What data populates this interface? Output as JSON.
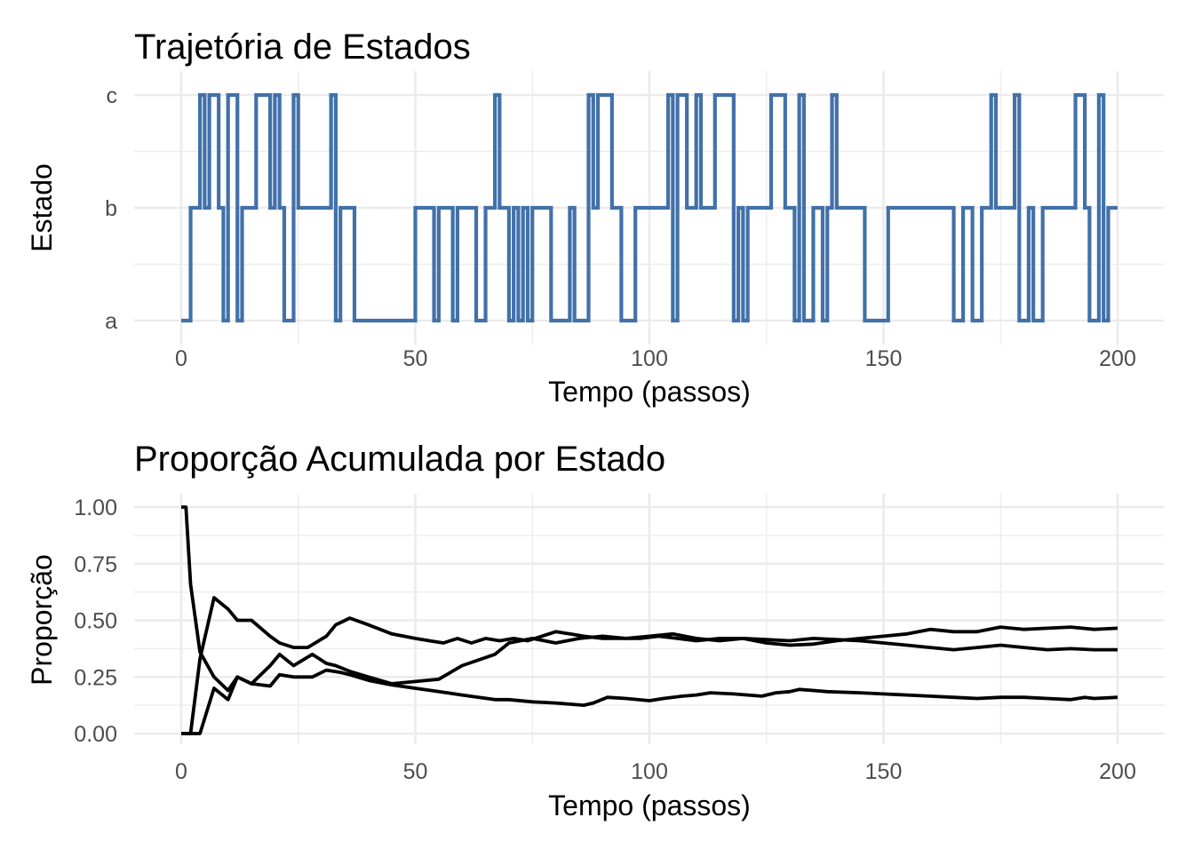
{
  "charts": [
    {
      "title": "Trajetória de Estados",
      "xlabel": "Tempo (passos)",
      "ylabel": "Estado"
    },
    {
      "title": "Proporção Acumulada por Estado",
      "xlabel": "Tempo (passos)",
      "ylabel": "Proporção"
    }
  ],
  "chart_data": [
    {
      "type": "line",
      "subtype": "step",
      "title": "Trajetória de Estados",
      "xlabel": "Tempo (passos)",
      "ylabel": "Estado",
      "xlim": [
        0,
        200
      ],
      "x_ticks": [
        0,
        50,
        100,
        150,
        200
      ],
      "y_categories": [
        "a",
        "b",
        "c"
      ],
      "grid": true,
      "line_color": "#4271A9",
      "series": [
        {
          "x": [
            0,
            2,
            4,
            5,
            6,
            8,
            9,
            10,
            12,
            13,
            16,
            19,
            20,
            21,
            22,
            24,
            25,
            26,
            32,
            33,
            34,
            37,
            50,
            54,
            55,
            58,
            59,
            60,
            63,
            65,
            67,
            68,
            70,
            71,
            72,
            73,
            74,
            75,
            78,
            79,
            83,
            84,
            87,
            88,
            89,
            92,
            94,
            97,
            100,
            104,
            105,
            106,
            108,
            110,
            111,
            114,
            118,
            119,
            120,
            121,
            122,
            125,
            126,
            129,
            131,
            132,
            133,
            135,
            137,
            138,
            139,
            140,
            146,
            151,
            153,
            162,
            165,
            166,
            167,
            169,
            171,
            173,
            174,
            175,
            178,
            179,
            181,
            182,
            184,
            186,
            189,
            191,
            193,
            194,
            196,
            197,
            198,
            199,
            200
          ],
          "y": [
            "a",
            "b",
            "c",
            "b",
            "c",
            "b",
            "a",
            "c",
            "a",
            "b",
            "c",
            "b",
            "c",
            "b",
            "a",
            "c",
            "b",
            "b",
            "c",
            "a",
            "b",
            "a",
            "b",
            "a",
            "b",
            "a",
            "b",
            "b",
            "a",
            "b",
            "c",
            "b",
            "a",
            "b",
            "a",
            "b",
            "a",
            "b",
            "b",
            "a",
            "b",
            "a",
            "c",
            "b",
            "c",
            "b",
            "a",
            "b",
            "b",
            "c",
            "a",
            "c",
            "b",
            "c",
            "b",
            "c",
            "a",
            "b",
            "a",
            "b",
            "b",
            "b",
            "c",
            "b",
            "a",
            "c",
            "a",
            "b",
            "a",
            "b",
            "c",
            "b",
            "a",
            "b",
            "b",
            "b",
            "a",
            "a",
            "b",
            "a",
            "b",
            "c",
            "b",
            "b",
            "c",
            "a",
            "b",
            "a",
            "b",
            "b",
            "b",
            "c",
            "b",
            "a",
            "c",
            "a",
            "b",
            "b",
            "b"
          ]
        }
      ]
    },
    {
      "type": "line",
      "title": "Proporção Acumulada por Estado",
      "xlabel": "Tempo (passos)",
      "ylabel": "Proporção",
      "xlim": [
        0,
        200
      ],
      "ylim": [
        0,
        1
      ],
      "x_ticks": [
        0,
        50,
        100,
        150,
        200
      ],
      "y_ticks": [
        "0.00",
        "0.25",
        "0.50",
        "0.75",
        "1.00"
      ],
      "grid": true,
      "line_color": "#000000",
      "series": [
        {
          "x": [
            0,
            1,
            2,
            4,
            7,
            10,
            12,
            15,
            19,
            21,
            24,
            28,
            31,
            34,
            36,
            40,
            45,
            50,
            55,
            60,
            67,
            70,
            75,
            80,
            86,
            88,
            91,
            95,
            100,
            103,
            107,
            110,
            113,
            118,
            124,
            127,
            130,
            132,
            135,
            138,
            145,
            150,
            155,
            160,
            165,
            170,
            175,
            180,
            185,
            190,
            193,
            195,
            200
          ],
          "y": [
            1.0,
            1.0,
            0.66,
            0.36,
            0.25,
            0.19,
            0.25,
            0.22,
            0.21,
            0.26,
            0.25,
            0.25,
            0.28,
            0.27,
            0.26,
            0.235,
            0.215,
            0.2,
            0.185,
            0.17,
            0.15,
            0.15,
            0.14,
            0.135,
            0.125,
            0.135,
            0.16,
            0.155,
            0.145,
            0.155,
            0.165,
            0.17,
            0.18,
            0.175,
            0.165,
            0.18,
            0.185,
            0.195,
            0.19,
            0.185,
            0.18,
            0.175,
            0.17,
            0.165,
            0.16,
            0.155,
            0.16,
            0.16,
            0.155,
            0.15,
            0.16,
            0.155,
            0.16
          ]
        },
        {
          "x": [
            0,
            2,
            4,
            7,
            10,
            12,
            15,
            19,
            21,
            24,
            28,
            31,
            33,
            36,
            40,
            45,
            50,
            55,
            60,
            67,
            70,
            75,
            80,
            85,
            90,
            95,
            100,
            105,
            110,
            115,
            120,
            125,
            130,
            135,
            140,
            145,
            150,
            155,
            160,
            165,
            170,
            175,
            180,
            185,
            190,
            195,
            200
          ],
          "y": [
            0.0,
            0.0,
            0.0,
            0.2,
            0.15,
            0.25,
            0.22,
            0.3,
            0.35,
            0.3,
            0.35,
            0.31,
            0.3,
            0.275,
            0.25,
            0.22,
            0.23,
            0.24,
            0.3,
            0.35,
            0.4,
            0.42,
            0.4,
            0.42,
            0.43,
            0.42,
            0.43,
            0.44,
            0.42,
            0.41,
            0.42,
            0.415,
            0.41,
            0.42,
            0.415,
            0.41,
            0.4,
            0.39,
            0.38,
            0.37,
            0.38,
            0.39,
            0.38,
            0.37,
            0.375,
            0.37,
            0.37
          ]
        },
        {
          "x": [
            0,
            2,
            4,
            7,
            10,
            12,
            15,
            19,
            21,
            24,
            27,
            31,
            33,
            36,
            40,
            45,
            50,
            53,
            56,
            59,
            62,
            65,
            68,
            71,
            74,
            77,
            80,
            83,
            86,
            90,
            94,
            98,
            102,
            106,
            110,
            115,
            120,
            125,
            130,
            135,
            140,
            145,
            150,
            155,
            160,
            165,
            170,
            175,
            180,
            185,
            190,
            195,
            200
          ],
          "y": [
            0.0,
            0.0,
            0.33,
            0.6,
            0.55,
            0.5,
            0.5,
            0.43,
            0.4,
            0.38,
            0.38,
            0.43,
            0.48,
            0.51,
            0.48,
            0.44,
            0.42,
            0.41,
            0.4,
            0.42,
            0.4,
            0.42,
            0.41,
            0.42,
            0.41,
            0.43,
            0.45,
            0.44,
            0.43,
            0.42,
            0.42,
            0.42,
            0.43,
            0.42,
            0.41,
            0.42,
            0.42,
            0.4,
            0.39,
            0.395,
            0.41,
            0.42,
            0.43,
            0.44,
            0.46,
            0.45,
            0.45,
            0.47,
            0.46,
            0.465,
            0.47,
            0.46,
            0.465
          ]
        }
      ]
    }
  ]
}
